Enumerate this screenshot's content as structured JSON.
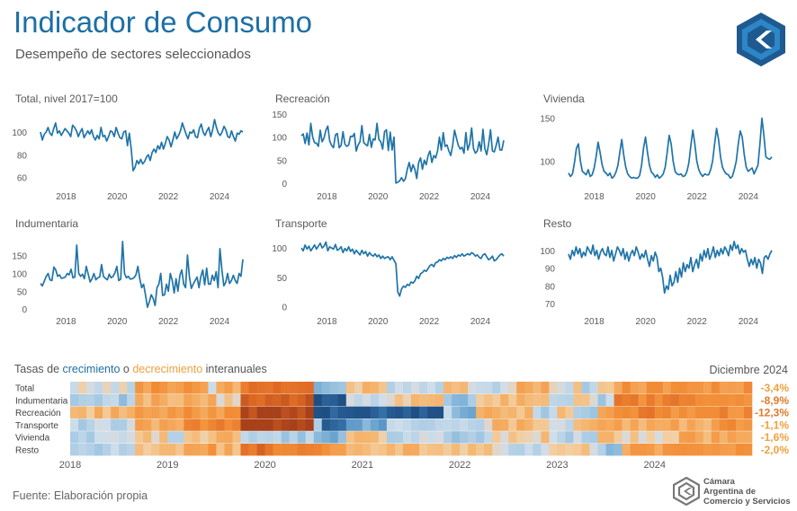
{
  "header": {
    "title": "Indicador de Consumo",
    "subtitle": "Desempeño de sectores seleccionados"
  },
  "heatmap_section": {
    "title_prefix": "Tasas de ",
    "title_growth": "crecimiento",
    "title_middle": " o ",
    "title_decline": "decrecimiento",
    "title_suffix": " interanuales",
    "latest_month": "Diciembre 2024"
  },
  "footer": {
    "source": "Fuente: Elaboración propia",
    "org_line1": "Cámara",
    "org_line2": "Argentina de",
    "org_line3": "Comercio y Servicios"
  },
  "colors": {
    "line": "#1f74a8",
    "title": "#1d6fa5",
    "growth_dark": "#1e5a8f",
    "decline_dark": "#b84a1a",
    "decline": "#f0a03c"
  },
  "chart_data": [
    {
      "type": "line",
      "title": "Total, nivel 2017=100",
      "x_ticks": [
        "2018",
        "2020",
        "2022",
        "2024"
      ],
      "y_ticks": [
        60,
        80,
        100
      ],
      "ylim": [
        55,
        115
      ],
      "x_range": [
        "2017-01",
        "2024-12"
      ],
      "values": [
        100,
        93,
        98,
        100,
        104,
        99,
        97,
        103,
        108,
        99,
        101,
        97,
        100,
        103,
        101,
        99,
        96,
        106,
        104,
        101,
        96,
        100,
        103,
        95,
        98,
        101,
        98,
        102,
        96,
        93,
        97,
        94,
        104,
        96,
        97,
        92,
        96,
        101,
        100,
        96,
        104,
        99,
        95,
        94,
        100,
        101,
        88,
        99,
        85,
        66,
        69,
        75,
        72,
        76,
        72,
        74,
        78,
        80,
        75,
        82,
        85,
        82,
        88,
        85,
        91,
        85,
        90,
        96,
        93,
        87,
        93,
        100,
        94,
        97,
        101,
        108,
        103,
        98,
        94,
        100,
        99,
        102,
        96,
        95,
        103,
        107,
        100,
        97,
        101,
        104,
        96,
        102,
        111,
        104,
        99,
        97,
        100,
        105,
        102,
        96,
        95,
        101,
        96,
        92,
        99,
        98,
        101,
        100
      ]
    },
    {
      "type": "line",
      "title": "Recreación",
      "x_ticks": [
        "2018",
        "2020",
        "2022",
        "2024"
      ],
      "y_ticks": [
        0,
        50,
        100,
        150
      ],
      "ylim": [
        -8,
        160
      ],
      "x_range": [
        "2017-01",
        "2024-12"
      ],
      "values": [
        103,
        107,
        86,
        109,
        83,
        130,
        100,
        88,
        87,
        80,
        115,
        90,
        98,
        115,
        124,
        92,
        82,
        77,
        105,
        108,
        77,
        82,
        112,
        85,
        80,
        83,
        102,
        101,
        108,
        70,
        83,
        90,
        125,
        88,
        84,
        81,
        106,
        78,
        96,
        94,
        130,
        95,
        90,
        74,
        112,
        116,
        71,
        111,
        72,
        100,
        0,
        2,
        5,
        12,
        4,
        10,
        30,
        45,
        25,
        40,
        30,
        10,
        45,
        55,
        30,
        50,
        40,
        60,
        70,
        45,
        60,
        55,
        70,
        100,
        72,
        110,
        80,
        83,
        70,
        60,
        82,
        115,
        98,
        82,
        74,
        78,
        65,
        110,
        72,
        85,
        120,
        75,
        65,
        70,
        90,
        70,
        117,
        75,
        62,
        85,
        116,
        70,
        68,
        82,
        100,
        72,
        72,
        93
      ]
    },
    {
      "type": "line",
      "title": "Vivienda",
      "x_ticks": [
        "2018",
        "2020",
        "2022",
        "2024"
      ],
      "y_ticks": [
        100,
        150
      ],
      "ylim": [
        70,
        160
      ],
      "x_range": [
        "2017-01",
        "2024-12"
      ],
      "values": [
        86,
        82,
        85,
        98,
        115,
        120,
        100,
        88,
        86,
        84,
        90,
        82,
        84,
        92,
        105,
        122,
        110,
        96,
        88,
        86,
        83,
        86,
        80,
        82,
        87,
        95,
        110,
        125,
        107,
        93,
        85,
        82,
        80,
        81,
        80,
        80,
        83,
        95,
        115,
        128,
        110,
        95,
        87,
        85,
        81,
        84,
        80,
        82,
        85,
        93,
        110,
        130,
        120,
        100,
        88,
        85,
        84,
        85,
        82,
        83,
        88,
        98,
        118,
        136,
        120,
        100,
        90,
        85,
        82,
        85,
        84,
        84,
        90,
        100,
        120,
        138,
        125,
        105,
        93,
        88,
        85,
        84,
        80,
        82,
        90,
        100,
        120,
        135,
        128,
        108,
        93,
        88,
        90,
        92,
        85,
        90,
        95,
        120,
        150,
        130,
        105,
        103,
        102,
        105
      ]
    },
    {
      "type": "line",
      "title": "Indumentaria",
      "x_ticks": [
        "2018",
        "2020",
        "2022",
        "2024"
      ],
      "y_ticks": [
        0,
        50,
        100,
        150
      ],
      "ylim": [
        -10,
        205
      ],
      "x_range": [
        "2017-01",
        "2024-12"
      ],
      "values": [
        72,
        65,
        78,
        92,
        100,
        82,
        80,
        118,
        110,
        92,
        96,
        86,
        88,
        90,
        100,
        96,
        112,
        88,
        90,
        180,
        100,
        92,
        98,
        85,
        120,
        98,
        76,
        85,
        100,
        82,
        88,
        90,
        125,
        92,
        86,
        82,
        98,
        88,
        92,
        102,
        120,
        80,
        84,
        190,
        100,
        88,
        92,
        84,
        85,
        88,
        96,
        120,
        85,
        60,
        70,
        40,
        5,
        20,
        40,
        30,
        10,
        60,
        70,
        100,
        38,
        40,
        70,
        50,
        100,
        80,
        45,
        85,
        50,
        95,
        110,
        70,
        60,
        152,
        90,
        58,
        70,
        80,
        90,
        60,
        92,
        110,
        68,
        115,
        70,
        70,
        95,
        80,
        105,
        60,
        170,
        110,
        65,
        75,
        100,
        72,
        80,
        95,
        80,
        72,
        100,
        92,
        140
      ]
    },
    {
      "type": "line",
      "title": "Transporte",
      "x_ticks": [
        "2018",
        "2020",
        "2022",
        "2024"
      ],
      "y_ticks": [
        0,
        50,
        100
      ],
      "ylim": [
        -10,
        120
      ],
      "x_range": [
        "2017-01",
        "2024-12"
      ],
      "values": [
        100,
        95,
        105,
        98,
        103,
        95,
        100,
        105,
        98,
        103,
        108,
        100,
        103,
        110,
        95,
        102,
        100,
        98,
        106,
        96,
        98,
        102,
        92,
        99,
        95,
        102,
        94,
        98,
        90,
        96,
        92,
        88,
        96,
        90,
        94,
        86,
        92,
        88,
        86,
        90,
        85,
        88,
        82,
        86,
        82,
        84,
        85,
        80,
        85,
        79,
        73,
        25,
        18,
        30,
        35,
        33,
        38,
        36,
        42,
        40,
        44,
        52,
        48,
        56,
        58,
        62,
        60,
        65,
        70,
        72,
        68,
        75,
        76,
        80,
        78,
        82,
        80,
        84,
        82,
        85,
        82,
        87,
        84,
        88,
        86,
        90,
        86,
        88,
        90,
        88,
        92,
        90,
        86,
        88,
        84,
        82,
        88,
        90,
        85,
        80,
        82,
        86,
        78,
        80,
        84,
        88,
        90,
        86
      ]
    },
    {
      "type": "line",
      "title": "Resto",
      "x_ticks": [
        "2018",
        "2020",
        "2022",
        "2024"
      ],
      "y_ticks": [
        70,
        80,
        90,
        100
      ],
      "ylim": [
        65,
        108
      ],
      "x_range": [
        "2017-01",
        "2024-12"
      ],
      "values": [
        98,
        95,
        100,
        97,
        102,
        98,
        101,
        96,
        99,
        97,
        102,
        100,
        98,
        103,
        97,
        100,
        95,
        99,
        101,
        98,
        97,
        102,
        96,
        100,
        94,
        98,
        102,
        100,
        97,
        101,
        95,
        99,
        94,
        98,
        100,
        97,
        102,
        99,
        95,
        98,
        96,
        100,
        95,
        91,
        97,
        94,
        99,
        96,
        88,
        90,
        85,
        76,
        80,
        78,
        86,
        80,
        82,
        88,
        82,
        90,
        85,
        93,
        88,
        92,
        90,
        96,
        88,
        92,
        95,
        90,
        98,
        94,
        100,
        96,
        101,
        95,
        98,
        102,
        96,
        100,
        97,
        101,
        98,
        102,
        100,
        97,
        103,
        100,
        105,
        101,
        103,
        98,
        101,
        99,
        100,
        95,
        91,
        95,
        92,
        96,
        90,
        95,
        93,
        87,
        96,
        97,
        95,
        98,
        100
      ]
    },
    {
      "type": "heatmap",
      "title": "Tasas de crecimiento o decrecimiento interanuales",
      "rows": [
        "Total",
        "Indumentaria",
        "Recreación",
        "Transporte",
        "Vivienda",
        "Resto"
      ],
      "x_ticks": [
        "2018",
        "2019",
        "2020",
        "2021",
        "2022",
        "2023",
        "2024"
      ],
      "x_range": [
        "2018-01",
        "2024-12"
      ],
      "latest_labels": [
        "-3,4%",
        "-8,9%",
        "-12,3%",
        "-1,1%",
        "-1,6%",
        "-2,0%"
      ],
      "latest_values": [
        -3.4,
        -8.9,
        -12.3,
        -1.1,
        -1.6,
        -2.0
      ],
      "segments": [
        [
          [
            0,
            12,
            0.1
          ],
          [
            12,
            26,
            -0.8
          ],
          [
            26,
            28,
            0.2
          ],
          [
            28,
            34,
            -0.6
          ],
          [
            34,
            47,
            -1.5
          ],
          [
            47,
            55,
            0.6
          ],
          [
            55,
            62,
            -0.3
          ],
          [
            62,
            73,
            0.3
          ],
          [
            73,
            78,
            -0.2
          ],
          [
            78,
            89,
            0.2
          ],
          [
            89,
            95,
            -0.6
          ],
          [
            95,
            99,
            0.1
          ],
          [
            99,
            101,
            -0.4
          ],
          [
            101,
            104,
            0.5
          ],
          [
            104,
            107,
            -0.3
          ],
          [
            107,
            132,
            -0.9
          ],
          [
            132,
            136,
            -1.0
          ]
        ],
        [
          [
            0,
            12,
            0.5
          ],
          [
            12,
            28,
            -0.6
          ],
          [
            28,
            34,
            -0.2
          ],
          [
            34,
            47,
            -1.8
          ],
          [
            47,
            55,
            2.2
          ],
          [
            55,
            62,
            0.3
          ],
          [
            62,
            73,
            -0.3
          ],
          [
            73,
            80,
            0.6
          ],
          [
            80,
            95,
            -0.4
          ],
          [
            95,
            99,
            0.3
          ],
          [
            99,
            104,
            -0.2
          ],
          [
            104,
            107,
            0.4
          ],
          [
            107,
            120,
            -1.2
          ],
          [
            120,
            136,
            -1.0
          ]
        ],
        [
          [
            0,
            12,
            -0.4
          ],
          [
            12,
            26,
            -0.9
          ],
          [
            26,
            34,
            -0.8
          ],
          [
            34,
            47,
            -2.2
          ],
          [
            47,
            55,
            2.1
          ],
          [
            55,
            62,
            2.0
          ],
          [
            62,
            73,
            2.1
          ],
          [
            73,
            76,
            0.3
          ],
          [
            76,
            80,
            1.0
          ],
          [
            80,
            91,
            -0.5
          ],
          [
            91,
            96,
            0.5
          ],
          [
            96,
            99,
            -0.4
          ],
          [
            99,
            104,
            0.6
          ],
          [
            104,
            107,
            -0.9
          ],
          [
            107,
            115,
            -1.2
          ],
          [
            115,
            136,
            -1.1
          ]
        ],
        [
          [
            0,
            12,
            0.3
          ],
          [
            12,
            22,
            -0.6
          ],
          [
            22,
            34,
            -1.2
          ],
          [
            34,
            47,
            -2.3
          ],
          [
            47,
            50,
            0.4
          ],
          [
            50,
            55,
            2.0
          ],
          [
            55,
            62,
            1.0
          ],
          [
            62,
            73,
            0.4
          ],
          [
            73,
            84,
            0.2
          ],
          [
            84,
            95,
            -0.4
          ],
          [
            95,
            99,
            0.3
          ],
          [
            99,
            107,
            -0.5
          ],
          [
            107,
            127,
            -0.6
          ],
          [
            127,
            136,
            -0.9
          ]
        ],
        [
          [
            0,
            12,
            0.3
          ],
          [
            12,
            18,
            -0.3
          ],
          [
            18,
            22,
            0.4
          ],
          [
            22,
            34,
            -0.4
          ],
          [
            34,
            47,
            0.5
          ],
          [
            47,
            55,
            0.8
          ],
          [
            55,
            62,
            -0.3
          ],
          [
            62,
            73,
            0.2
          ],
          [
            73,
            84,
            0.5
          ],
          [
            84,
            95,
            -0.2
          ],
          [
            95,
            104,
            0.3
          ],
          [
            104,
            107,
            -0.3
          ],
          [
            107,
            120,
            -0.2
          ],
          [
            120,
            136,
            -0.6
          ]
        ],
        [
          [
            0,
            12,
            0.3
          ],
          [
            12,
            22,
            -0.3
          ],
          [
            22,
            28,
            -0.8
          ],
          [
            28,
            34,
            -0.5
          ],
          [
            34,
            38,
            -1.5
          ],
          [
            38,
            47,
            -1.2
          ],
          [
            47,
            55,
            -0.9
          ],
          [
            55,
            62,
            -0.5
          ],
          [
            62,
            73,
            -0.4
          ],
          [
            73,
            84,
            -0.3
          ],
          [
            84,
            95,
            0.2
          ],
          [
            95,
            104,
            -0.2
          ],
          [
            104,
            110,
            0.6
          ],
          [
            110,
            136,
            -0.8
          ]
        ]
      ]
    }
  ]
}
